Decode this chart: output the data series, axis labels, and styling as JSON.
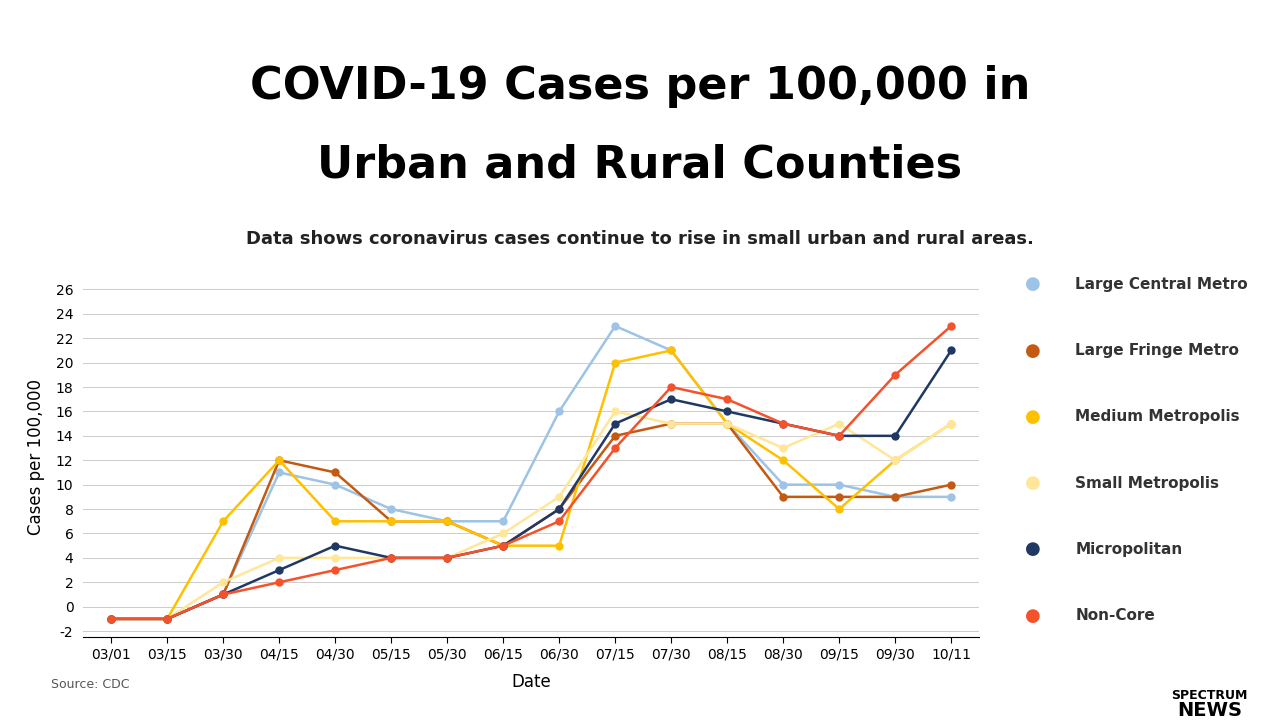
{
  "title_line1": "COVID-19 Cases per 100,000 in",
  "title_line2": "Urban and Rural Counties",
  "subtitle": "Data shows coronavirus cases continue to rise in small urban and rural areas.",
  "xlabel": "Date",
  "ylabel": "Cases per 100,000",
  "source": "Source: CDC",
  "x_labels": [
    "03/01",
    "03/15",
    "03/30",
    "04/15",
    "04/30",
    "05/15",
    "05/30",
    "06/15",
    "06/30",
    "07/15",
    "07/30",
    "08/15",
    "08/30",
    "09/15",
    "09/30",
    "10/11"
  ],
  "ylim": [
    -2.5,
    27
  ],
  "yticks": [
    -2,
    0,
    2,
    4,
    6,
    8,
    10,
    12,
    14,
    16,
    18,
    20,
    22,
    24,
    26
  ],
  "series": {
    "Large Central Metro": {
      "color": "#9DC3E6",
      "values": [
        -1,
        -1,
        1,
        11,
        10,
        8,
        7,
        7,
        16,
        23,
        21,
        15,
        10,
        10,
        9,
        9
      ]
    },
    "Large Fringe Metro": {
      "color": "#C45911",
      "values": [
        -1,
        -1,
        1,
        12,
        11,
        7,
        7,
        5,
        8,
        14,
        15,
        15,
        9,
        9,
        9,
        10
      ]
    },
    "Medium Metropolis": {
      "color": "#FFC000",
      "values": [
        -1,
        -1,
        7,
        12,
        7,
        7,
        7,
        5,
        5,
        20,
        21,
        15,
        12,
        8,
        12,
        15
      ]
    },
    "Small Metropolis": {
      "color": "#FFE699",
      "values": [
        -1,
        -1,
        2,
        4,
        4,
        4,
        4,
        6,
        9,
        16,
        15,
        15,
        13,
        15,
        12,
        15
      ]
    },
    "Micropolitan": {
      "color": "#1F3864",
      "values": [
        -1,
        -1,
        1,
        3,
        5,
        4,
        4,
        5,
        8,
        15,
        17,
        16,
        15,
        14,
        14,
        21
      ]
    },
    "Non-Core": {
      "color": "#F4522D",
      "values": [
        -1,
        -1,
        1,
        2,
        3,
        4,
        4,
        5,
        7,
        13,
        18,
        17,
        15,
        14,
        19,
        23
      ]
    }
  },
  "title_fontsize": 32,
  "subtitle_fontsize": 13,
  "axis_label_fontsize": 12,
  "tick_fontsize": 10,
  "legend_fontsize": 11,
  "header_bar_color": "#1F3864",
  "background_color": "#FFFFFF",
  "plot_bg_color": "#FFFFFF"
}
